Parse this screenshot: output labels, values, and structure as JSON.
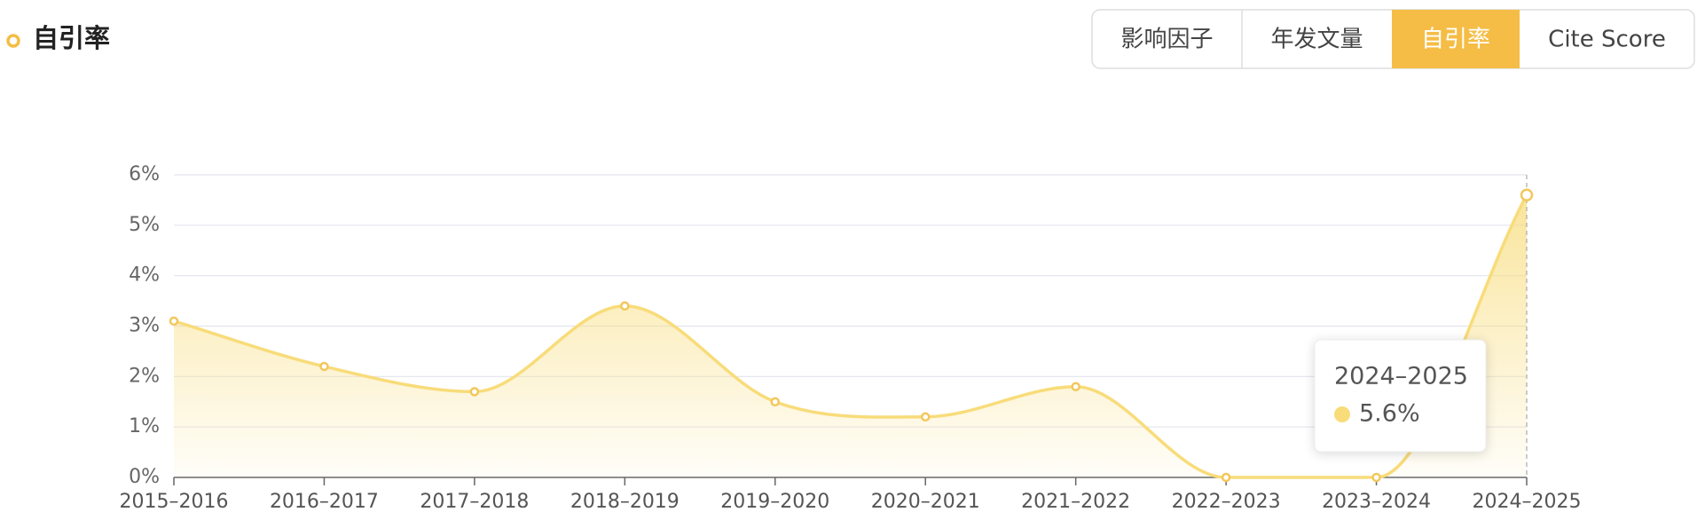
{
  "header": {
    "title": "自引率"
  },
  "tabs": [
    {
      "label": "影响因子"
    },
    {
      "label": "年发文量"
    },
    {
      "label": "自引率",
      "active": true
    },
    {
      "label": "Cite Score"
    }
  ],
  "chart_data": {
    "type": "area",
    "categories": [
      "2015–2016",
      "2016–2017",
      "2017–2018",
      "2018–2019",
      "2019–2020",
      "2020–2021",
      "2021–2022",
      "2022–2023",
      "2023–2024",
      "2024–2025"
    ],
    "values": [
      3.1,
      2.2,
      1.7,
      3.4,
      1.5,
      1.2,
      1.8,
      0,
      0,
      5.6
    ],
    "color": "#f8dc7a",
    "ylim": [
      0,
      6
    ],
    "yticks": [
      {
        "value": 0,
        "label": "0%"
      },
      {
        "value": 1,
        "label": "1%"
      },
      {
        "value": 2,
        "label": "2%"
      },
      {
        "value": 3,
        "label": "3%"
      },
      {
        "value": 4,
        "label": "4%"
      },
      {
        "value": 5,
        "label": "5%"
      },
      {
        "value": 6,
        "label": "6%"
      }
    ],
    "grid": true,
    "smooth": true,
    "tooltip": {
      "label": "2024–2025",
      "value_label": "5.6%"
    }
  }
}
